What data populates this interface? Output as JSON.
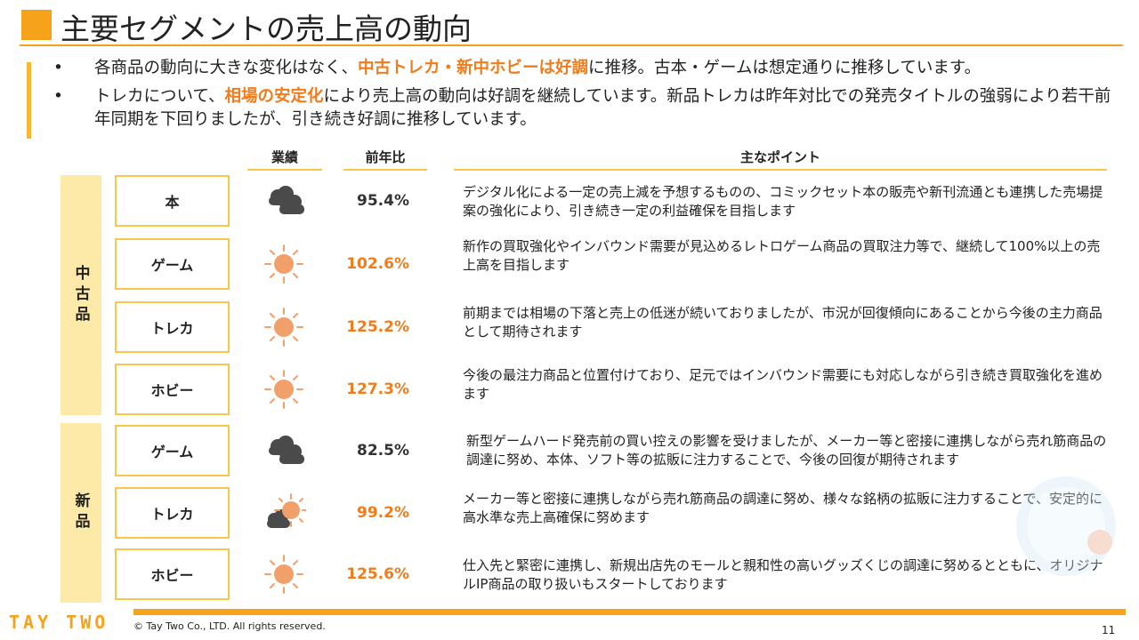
{
  "title": "主要セグメントの売上高の動向",
  "bullets": [
    {
      "dot": "•",
      "pre": "各商品の動向に大きな変化はなく、",
      "highlight": "中古トレカ・新中ホビーは好調",
      "post": "に推移。古本・ゲームは想定通りに推移しています。"
    },
    {
      "dot": "•",
      "pre": "トレカについて、",
      "highlight": "相場の安定化",
      "post": "により売上高の動向は好調を継続しています。新品トレカは昨年対比での発売タイトルの強弱により若干前年同期を下回りましたが、引き続き好調に推移しています。"
    }
  ],
  "table": {
    "headers": {
      "performance": "業績",
      "yoy": "前年比",
      "points": "主なポイント"
    },
    "groups": [
      {
        "label": "中古品"
      },
      {
        "label": "新品"
      }
    ],
    "rows": [
      {
        "category": "本",
        "weather": "cloudy",
        "yoy": "95.4%",
        "trend": "down",
        "point": "デジタル化による一定の売上減を予想するものの、コミックセット本の販売や新刊流通とも連携した売場提案の強化により、引き続き一定の利益確保を目指します"
      },
      {
        "category": "ゲーム",
        "weather": "sunny",
        "yoy": "102.6%",
        "trend": "up",
        "point": "新作の買取強化やインバウンド需要が見込めるレトロゲーム商品の買取注力等で、継続して100%以上の売上高を目指します"
      },
      {
        "category": "トレカ",
        "weather": "sunny",
        "yoy": "125.2%",
        "trend": "up",
        "point": "前期までは相場の下落と売上の低迷が続いておりましたが、市況が回復傾向にあることから今後の主力商品として期待されます"
      },
      {
        "category": "ホビー",
        "weather": "sunny",
        "yoy": "127.3%",
        "trend": "up",
        "point": "今後の最注力商品と位置付けており、足元ではインバウンド需要にも対応しながら引き続き買取強化を進めます"
      },
      {
        "category": "ゲーム",
        "weather": "cloudy",
        "yoy": "82.5%",
        "trend": "down",
        "point": "新型ゲームハード発売前の買い控えの影響を受けましたが、メーカー等と密接に連携しながら売れ筋商品の調達に努め、本体、ソフト等の拡販に注力することで、今後の回復が期待されます"
      },
      {
        "category": "トレカ",
        "weather": "sun-cloud",
        "yoy": "99.2%",
        "trend": "down",
        "point": "メーカー等と密接に連携しながら売れ筋商品の調達に努め、様々な銘柄の拡販に注力することで、安定的に高水準な売上高確保に努めます"
      },
      {
        "category": "ホビー",
        "weather": "sunny",
        "yoy": "125.6%",
        "trend": "up",
        "point": "仕入先と緊密に連携し、新規出店先のモールと親和性の高いグッズくじの調達に努めるとともに、オリジナルIP商品の取り扱いもスタートしております"
      }
    ]
  },
  "footer": {
    "logo": "TAY TWO",
    "copyright": "© Tay Two Co., LTD. All rights reserved.",
    "page": "11"
  },
  "colors": {
    "accent": "#f7a21b",
    "highlight": "#f07c1c",
    "sun": "#f2a06a",
    "cloud": "#4a4a4a",
    "box_border": "#f7c948",
    "group_bg": "#fde9a8"
  }
}
